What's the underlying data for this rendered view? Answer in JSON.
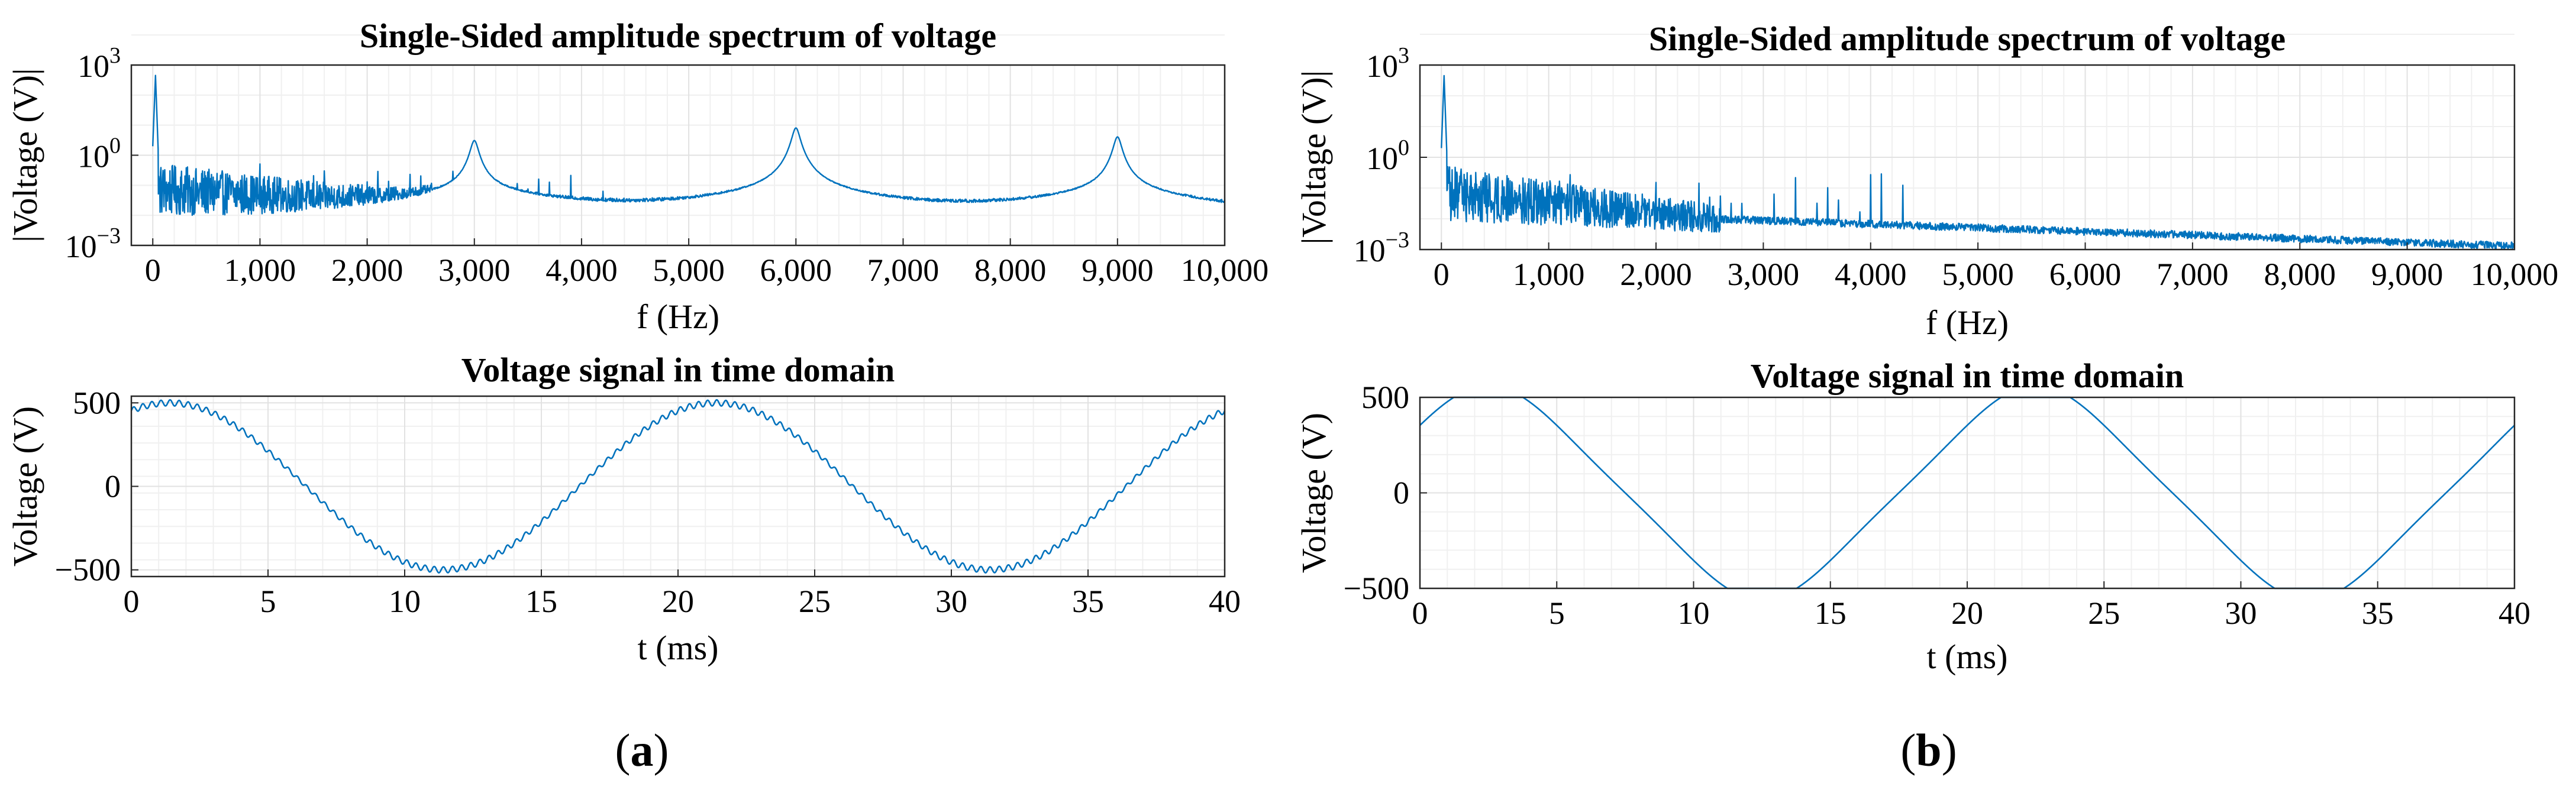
{
  "line_color": "#0072BD",
  "grid_color": "#e2e2e2",
  "subfigures": [
    {
      "label": "(a)",
      "letter": "a"
    },
    {
      "label": "(b)",
      "letter": "b"
    }
  ],
  "chart_data": [
    {
      "id": "a-spectrum",
      "type": "line",
      "title": "Single-Sided amplitude spectrum of voltage",
      "xlabel": "f (Hz)",
      "ylabel": "|Voltage (V)|",
      "xlim": [
        -200,
        10000
      ],
      "ylim_log10": [
        -3,
        3
      ],
      "yscale": "log",
      "grid": true,
      "x_ticks": [
        0,
        1000,
        2000,
        3000,
        4000,
        5000,
        6000,
        7000,
        8000,
        9000,
        10000
      ],
      "x_tick_labels": [
        "0",
        "1,000",
        "2,000",
        "3,000",
        "4,000",
        "5,000",
        "6,000",
        "7,000",
        "8,000",
        "9,000",
        "10,000"
      ],
      "y_ticks_log10": [
        -3,
        0,
        3
      ],
      "y_tick_base": "10",
      "y_tick_exponents": [
        "−3",
        "0",
        "3"
      ],
      "fundamental_hz": 50,
      "fundamental_amplitude": 450,
      "harmonic_amplitude_range": [
        0.01,
        0.3
      ],
      "noise_floor_start": 0.02,
      "noise_floor_end": 0.012,
      "resonance_peaks": [
        {
          "f": 3000,
          "amplitude": 3
        },
        {
          "f": 6000,
          "amplitude": 8
        },
        {
          "f": 9000,
          "amplitude": 4
        }
      ]
    },
    {
      "id": "a-time",
      "type": "line",
      "title": "Voltage signal in time domain",
      "xlabel": "t (ms)",
      "ylabel": "Voltage (V)",
      "xlim": [
        0,
        40
      ],
      "ylim": [
        -540,
        540
      ],
      "grid": true,
      "x_ticks": [
        0,
        5,
        10,
        15,
        20,
        25,
        30,
        35,
        40
      ],
      "x_tick_labels": [
        "0",
        "5",
        "10",
        "15",
        "20",
        "25",
        "30",
        "35",
        "40"
      ],
      "y_ticks": [
        -500,
        0,
        500
      ],
      "y_tick_labels": [
        "−500",
        "0",
        "500"
      ],
      "amplitude": 500,
      "frequency_hz": 50,
      "phase_deg": 65,
      "ripple_amplitude": 18,
      "ripple_frequency_hz": 3000
    },
    {
      "id": "b-spectrum",
      "type": "line",
      "title": "Single-Sided amplitude spectrum of voltage",
      "xlabel": "f (Hz)",
      "ylabel": "|Voltage (V)|",
      "xlim": [
        -200,
        10000
      ],
      "ylim_log10": [
        -3,
        3
      ],
      "yscale": "log",
      "grid": true,
      "x_ticks": [
        0,
        1000,
        2000,
        3000,
        4000,
        5000,
        6000,
        7000,
        8000,
        9000,
        10000
      ],
      "x_tick_labels": [
        "0",
        "1,000",
        "2,000",
        "3,000",
        "4,000",
        "5,000",
        "6,000",
        "7,000",
        "8,000",
        "9,000",
        "10,000"
      ],
      "y_ticks_log10": [
        -3,
        0,
        3
      ],
      "y_tick_base": "10",
      "y_tick_exponents": [
        "−3",
        "0",
        "3"
      ],
      "fundamental_hz": 50,
      "fundamental_amplitude": 450,
      "harmonic_amplitude_range": [
        0.003,
        0.3
      ],
      "noise_floor_start": 0.02,
      "noise_floor_end": 0.0013,
      "resonance_peaks": []
    },
    {
      "id": "b-time",
      "type": "line",
      "title": "Voltage signal in time domain",
      "xlabel": "t (ms)",
      "ylabel": "Voltage (V)",
      "xlim": [
        0,
        40
      ],
      "ylim": [
        -500,
        500
      ],
      "grid": true,
      "x_ticks": [
        0,
        5,
        10,
        15,
        20,
        25,
        30,
        35,
        40
      ],
      "x_tick_labels": [
        "0",
        "5",
        "10",
        "15",
        "20",
        "25",
        "30",
        "35",
        "40"
      ],
      "y_ticks": [
        -500,
        0,
        500
      ],
      "y_tick_labels": [
        "−500",
        "0",
        "500"
      ],
      "amplitude": 500,
      "frequency_hz": 50,
      "phase_deg": 45,
      "ripple_amplitude": 0,
      "ripple_frequency_hz": 0
    }
  ]
}
